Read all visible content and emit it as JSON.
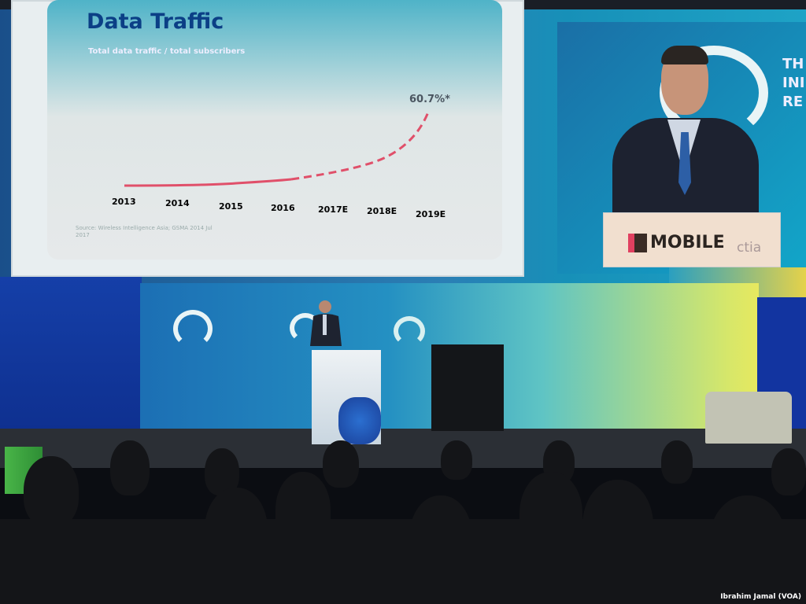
{
  "slide": {
    "title": "Data Traffic",
    "subtitle": "Total data traffic / total subscribers",
    "annotation": "60.7%*",
    "years": [
      "2013",
      "2014",
      "2015",
      "2016",
      "2017E",
      "2018E",
      "2019E"
    ],
    "line_color": "#e0506a",
    "source": "Source: Wireless Intelligence Asia; GSMA 2014 Jul 2017"
  },
  "speaker_screen": {
    "side_text": [
      "TH",
      "INI",
      "RE"
    ],
    "podium_logo": "MOBILE",
    "podium_partner": "ctia"
  },
  "credit": "Ibrahim Jamal (VOA)"
}
